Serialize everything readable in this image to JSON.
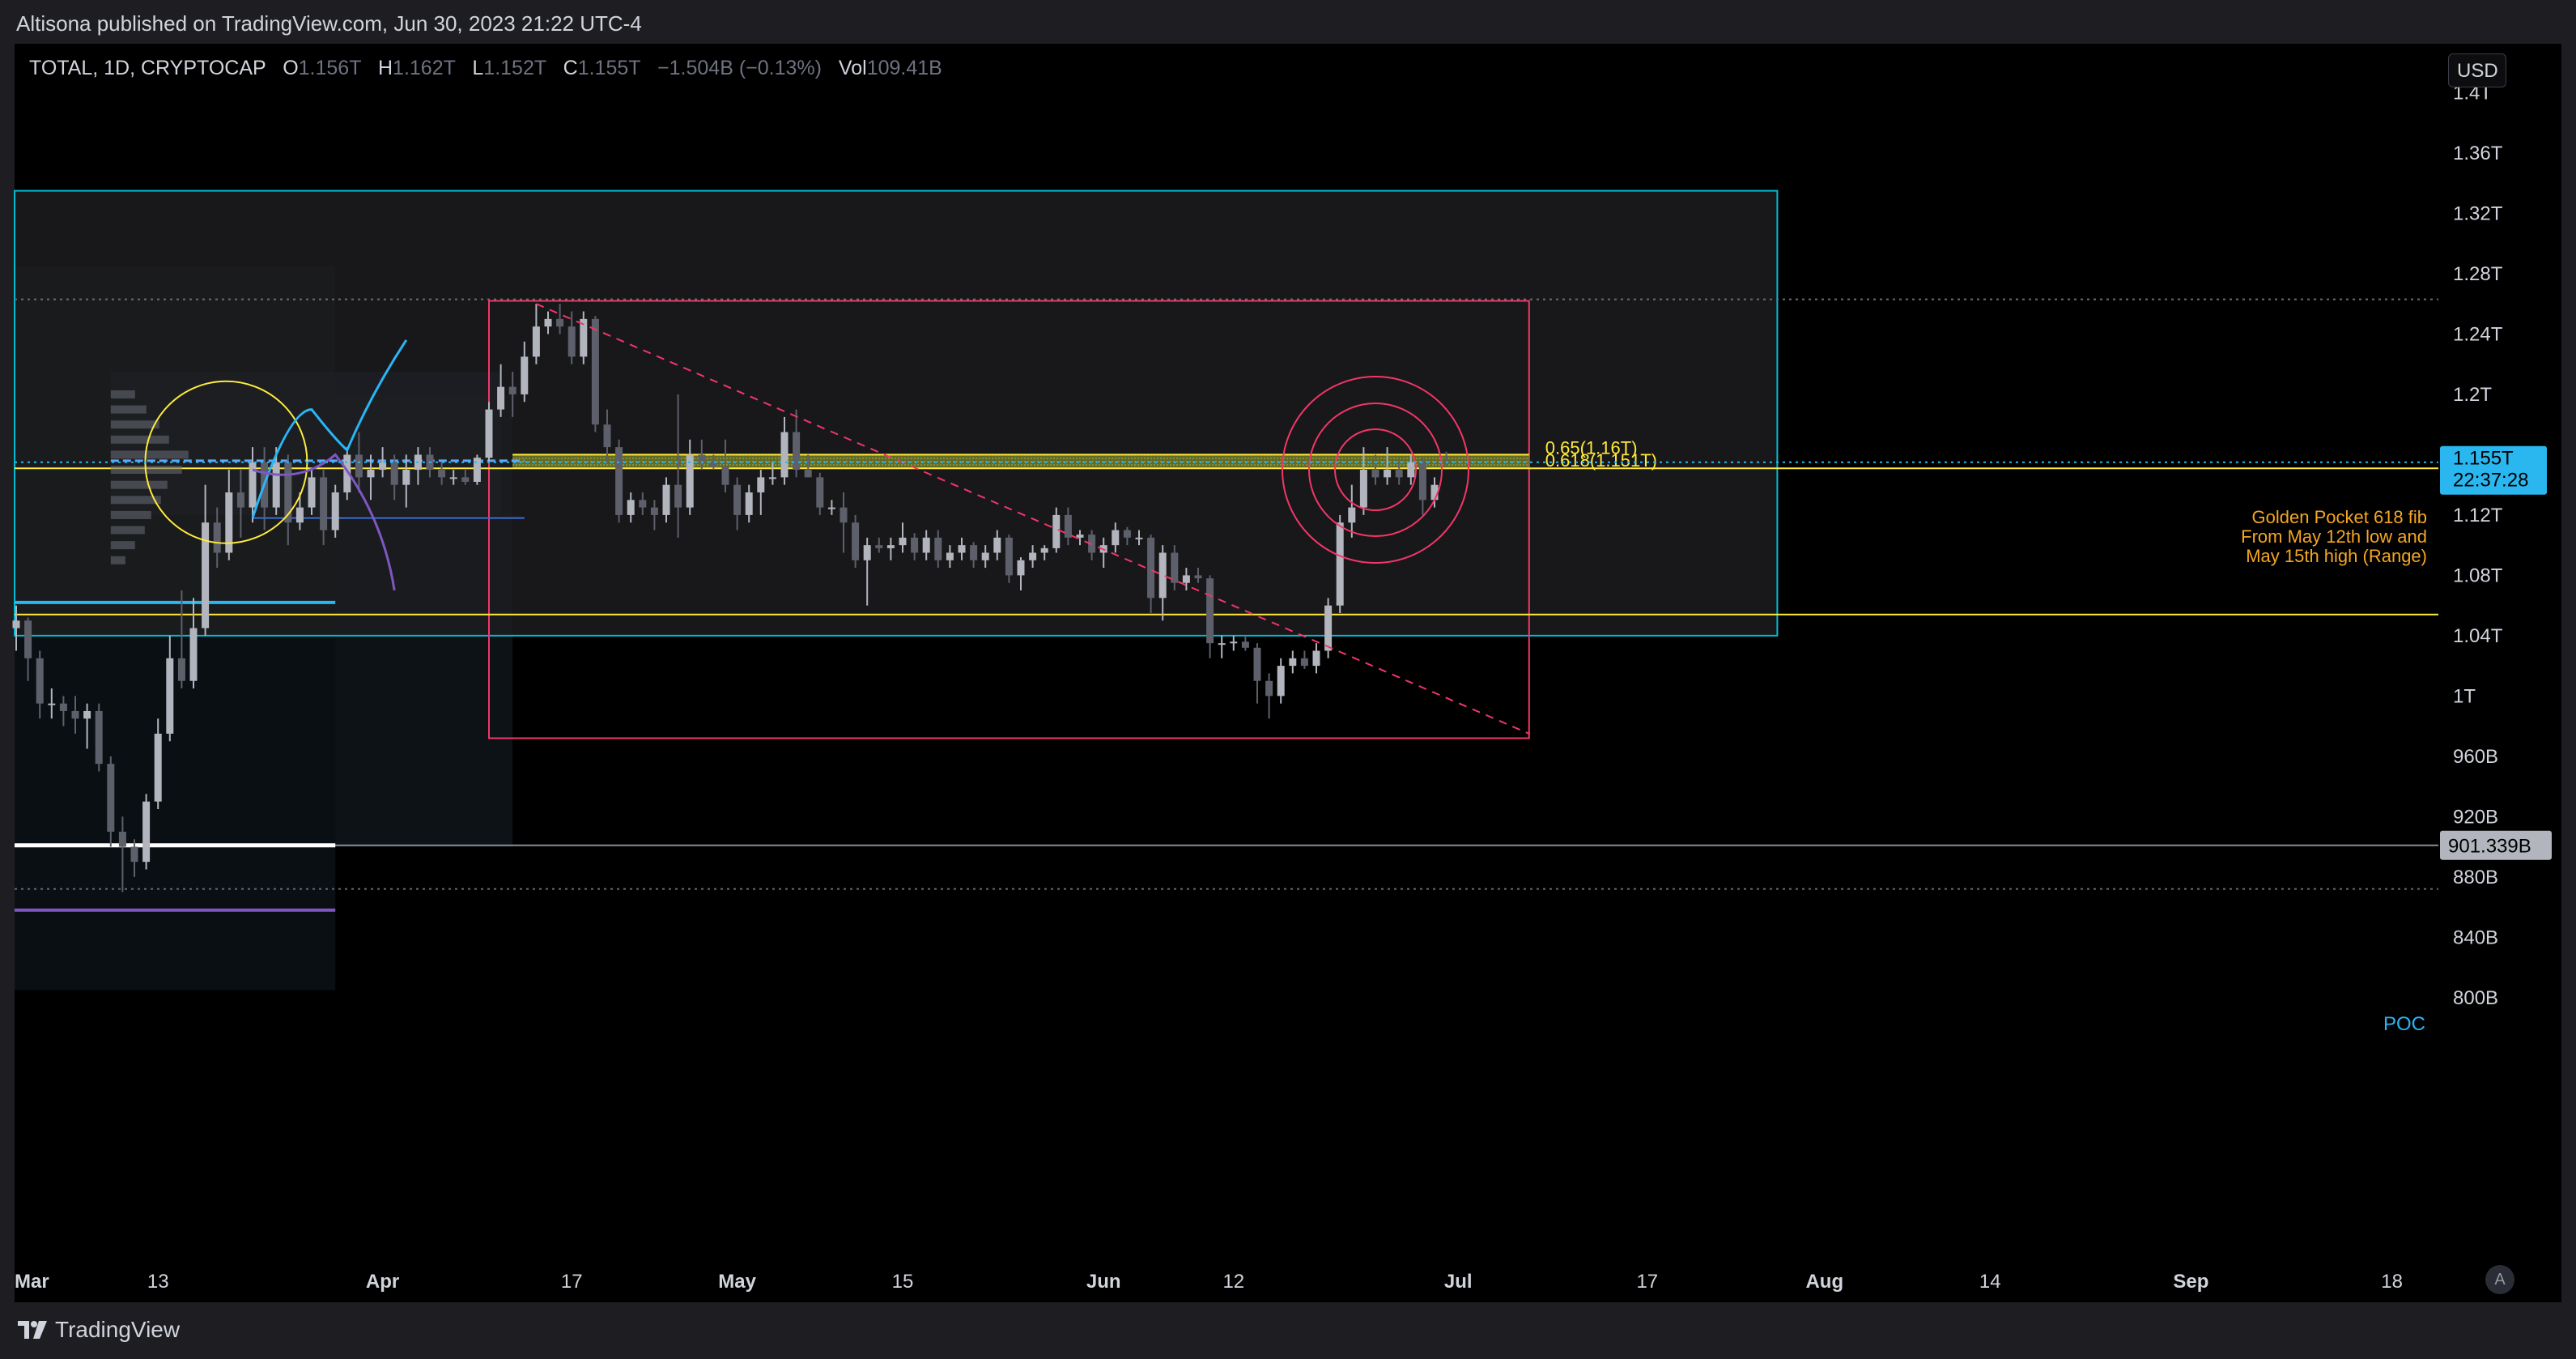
{
  "publisher": "Altisona published on TradingView.com, Jun 30, 2023 21:22 UTC-4",
  "legend": {
    "symbol": "TOTAL, 1D, CRYPTOCAP",
    "o_label": "O",
    "o": "1.156T",
    "h_label": "H",
    "h": "1.162T",
    "l_label": "L",
    "l": "1.152T",
    "c_label": "C",
    "c": "1.155T",
    "change": "−1.504B (−0.13%)",
    "vol_label": "Vol",
    "vol": "109.41B"
  },
  "currency": "USD",
  "brand": "TradingView",
  "auto_label": "A",
  "colors": {
    "bull": "#b2b5be",
    "bear": "#5d606b",
    "blue_box": "#00bcd4",
    "red_box": "#f23669",
    "fib": "#ffeb3b",
    "poc": "#ffffff",
    "price_tag": "#2ab7f0",
    "annotation": "#f5a623",
    "cyan_line": "#29b6f6",
    "purple": "#7e57c2"
  },
  "chart_data": {
    "type": "candlestick",
    "title": "TOTAL, 1D, CRYPTOCAP",
    "y_unit": "USD (T)",
    "ylim": [
      0.775,
      1.425
    ],
    "y_ticks": [
      "1.4T",
      "1.36T",
      "1.32T",
      "1.28T",
      "1.24T",
      "1.2T",
      "1.16T",
      "1.12T",
      "1.08T",
      "1.04T",
      "1T",
      "960B",
      "920B",
      "880B",
      "840B",
      "800B"
    ],
    "y_tick_values": [
      1.4,
      1.36,
      1.32,
      1.28,
      1.24,
      1.2,
      1.16,
      1.12,
      1.08,
      1.04,
      1.0,
      0.96,
      0.92,
      0.88,
      0.84,
      0.8
    ],
    "x_ticks": [
      "Mar",
      "13",
      "Apr",
      "17",
      "May",
      "15",
      "Jun",
      "12",
      "Jul",
      "17",
      "Aug",
      "14",
      "Sep",
      "18"
    ],
    "x_tick_days": [
      0,
      12,
      31,
      47,
      61,
      75,
      92,
      103,
      122,
      138,
      153,
      167,
      184,
      201
    ],
    "x_origin": "2023-03-01",
    "xlim_days": [
      0,
      202
    ],
    "candles": [
      [
        "2023-03-01",
        1.045,
        1.06,
        1.03,
        1.05
      ],
      [
        "2023-03-02",
        1.05,
        1.052,
        1.01,
        1.025
      ],
      [
        "2023-03-03",
        1.025,
        1.03,
        0.985,
        0.995
      ],
      [
        "2023-03-04",
        0.995,
        1.005,
        0.985,
        0.995
      ],
      [
        "2023-03-05",
        0.995,
        1.0,
        0.98,
        0.99
      ],
      [
        "2023-03-06",
        0.99,
        1.0,
        0.975,
        0.985
      ],
      [
        "2023-03-07",
        0.985,
        0.995,
        0.965,
        0.99
      ],
      [
        "2023-03-08",
        0.99,
        0.995,
        0.95,
        0.955
      ],
      [
        "2023-03-09",
        0.955,
        0.96,
        0.9,
        0.91
      ],
      [
        "2023-03-10",
        0.91,
        0.92,
        0.87,
        0.9
      ],
      [
        "2023-03-11",
        0.9,
        0.905,
        0.88,
        0.89
      ],
      [
        "2023-03-12",
        0.89,
        0.935,
        0.885,
        0.93
      ],
      [
        "2023-03-13",
        0.93,
        0.985,
        0.925,
        0.975
      ],
      [
        "2023-03-14",
        0.975,
        1.04,
        0.97,
        1.025
      ],
      [
        "2023-03-15",
        1.025,
        1.07,
        1.005,
        1.01
      ],
      [
        "2023-03-16",
        1.01,
        1.065,
        1.005,
        1.045
      ],
      [
        "2023-03-17",
        1.045,
        1.14,
        1.04,
        1.115
      ],
      [
        "2023-03-18",
        1.115,
        1.125,
        1.085,
        1.095
      ],
      [
        "2023-03-19",
        1.095,
        1.15,
        1.09,
        1.135
      ],
      [
        "2023-03-20",
        1.135,
        1.15,
        1.105,
        1.125
      ],
      [
        "2023-03-21",
        1.125,
        1.165,
        1.115,
        1.155
      ],
      [
        "2023-03-22",
        1.155,
        1.165,
        1.11,
        1.125
      ],
      [
        "2023-03-23",
        1.125,
        1.165,
        1.12,
        1.155
      ],
      [
        "2023-03-24",
        1.155,
        1.16,
        1.1,
        1.115
      ],
      [
        "2023-03-25",
        1.115,
        1.135,
        1.11,
        1.125
      ],
      [
        "2023-03-26",
        1.125,
        1.15,
        1.12,
        1.145
      ],
      [
        "2023-03-27",
        1.145,
        1.15,
        1.1,
        1.11
      ],
      [
        "2023-03-28",
        1.11,
        1.14,
        1.105,
        1.135
      ],
      [
        "2023-03-29",
        1.135,
        1.165,
        1.13,
        1.16
      ],
      [
        "2023-03-30",
        1.16,
        1.175,
        1.135,
        1.145
      ],
      [
        "2023-03-31",
        1.145,
        1.16,
        1.13,
        1.15
      ],
      [
        "2023-04-01",
        1.15,
        1.165,
        1.145,
        1.155
      ],
      [
        "2023-04-02",
        1.155,
        1.16,
        1.13,
        1.14
      ],
      [
        "2023-04-03",
        1.14,
        1.16,
        1.125,
        1.15
      ],
      [
        "2023-04-04",
        1.15,
        1.165,
        1.14,
        1.16
      ],
      [
        "2023-04-05",
        1.16,
        1.165,
        1.145,
        1.15
      ],
      [
        "2023-04-06",
        1.15,
        1.155,
        1.14,
        1.145
      ],
      [
        "2023-04-07",
        1.145,
        1.15,
        1.14,
        1.145
      ],
      [
        "2023-04-08",
        1.145,
        1.15,
        1.14,
        1.142
      ],
      [
        "2023-04-09",
        1.142,
        1.16,
        1.14,
        1.158
      ],
      [
        "2023-04-10",
        1.158,
        1.195,
        1.155,
        1.19
      ],
      [
        "2023-04-11",
        1.19,
        1.22,
        1.185,
        1.205
      ],
      [
        "2023-04-12",
        1.205,
        1.215,
        1.185,
        1.2
      ],
      [
        "2023-04-13",
        1.2,
        1.235,
        1.195,
        1.225
      ],
      [
        "2023-04-14",
        1.225,
        1.26,
        1.22,
        1.245
      ],
      [
        "2023-04-15",
        1.245,
        1.255,
        1.24,
        1.25
      ],
      [
        "2023-04-16",
        1.25,
        1.26,
        1.24,
        1.245
      ],
      [
        "2023-04-17",
        1.245,
        1.255,
        1.22,
        1.225
      ],
      [
        "2023-04-18",
        1.225,
        1.255,
        1.22,
        1.25
      ],
      [
        "2023-04-19",
        1.25,
        1.252,
        1.175,
        1.18
      ],
      [
        "2023-04-20",
        1.18,
        1.19,
        1.155,
        1.165
      ],
      [
        "2023-04-21",
        1.165,
        1.17,
        1.115,
        1.12
      ],
      [
        "2023-04-22",
        1.12,
        1.135,
        1.115,
        1.13
      ],
      [
        "2023-04-23",
        1.13,
        1.135,
        1.12,
        1.125
      ],
      [
        "2023-04-24",
        1.125,
        1.13,
        1.11,
        1.12
      ],
      [
        "2023-04-25",
        1.12,
        1.145,
        1.115,
        1.14
      ],
      [
        "2023-04-26",
        1.14,
        1.2,
        1.105,
        1.125
      ],
      [
        "2023-04-27",
        1.125,
        1.17,
        1.12,
        1.16
      ],
      [
        "2023-04-28",
        1.16,
        1.17,
        1.15,
        1.155
      ],
      [
        "2023-04-29",
        1.155,
        1.16,
        1.15,
        1.152
      ],
      [
        "2023-04-30",
        1.152,
        1.17,
        1.135,
        1.14
      ],
      [
        "2023-05-01",
        1.14,
        1.145,
        1.11,
        1.12
      ],
      [
        "2023-05-02",
        1.12,
        1.14,
        1.115,
        1.135
      ],
      [
        "2023-05-03",
        1.135,
        1.15,
        1.12,
        1.145
      ],
      [
        "2023-05-04",
        1.145,
        1.155,
        1.14,
        1.145
      ],
      [
        "2023-05-05",
        1.145,
        1.185,
        1.14,
        1.175
      ],
      [
        "2023-05-06",
        1.175,
        1.19,
        1.145,
        1.15
      ],
      [
        "2023-05-07",
        1.15,
        1.16,
        1.145,
        1.145
      ],
      [
        "2023-05-08",
        1.145,
        1.148,
        1.12,
        1.125
      ],
      [
        "2023-05-09",
        1.125,
        1.13,
        1.12,
        1.125
      ],
      [
        "2023-05-10",
        1.125,
        1.135,
        1.095,
        1.115
      ],
      [
        "2023-05-11",
        1.115,
        1.12,
        1.085,
        1.09
      ],
      [
        "2023-05-12",
        1.09,
        1.105,
        1.06,
        1.1
      ],
      [
        "2023-05-13",
        1.1,
        1.105,
        1.095,
        1.098
      ],
      [
        "2023-05-14",
        1.098,
        1.105,
        1.09,
        1.1
      ],
      [
        "2023-05-15",
        1.1,
        1.115,
        1.095,
        1.105
      ],
      [
        "2023-05-16",
        1.105,
        1.108,
        1.09,
        1.095
      ],
      [
        "2023-05-17",
        1.095,
        1.11,
        1.09,
        1.105
      ],
      [
        "2023-05-18",
        1.105,
        1.11,
        1.085,
        1.09
      ],
      [
        "2023-05-19",
        1.09,
        1.1,
        1.085,
        1.095
      ],
      [
        "2023-05-20",
        1.095,
        1.105,
        1.09,
        1.1
      ],
      [
        "2023-05-21",
        1.1,
        1.102,
        1.085,
        1.09
      ],
      [
        "2023-05-22",
        1.09,
        1.1,
        1.085,
        1.095
      ],
      [
        "2023-05-23",
        1.095,
        1.11,
        1.09,
        1.105
      ],
      [
        "2023-05-24",
        1.105,
        1.107,
        1.075,
        1.08
      ],
      [
        "2023-05-25",
        1.08,
        1.092,
        1.07,
        1.09
      ],
      [
        "2023-05-26",
        1.09,
        1.1,
        1.085,
        1.095
      ],
      [
        "2023-05-27",
        1.095,
        1.1,
        1.09,
        1.098
      ],
      [
        "2023-05-28",
        1.098,
        1.125,
        1.095,
        1.12
      ],
      [
        "2023-05-29",
        1.12,
        1.125,
        1.1,
        1.105
      ],
      [
        "2023-05-30",
        1.105,
        1.11,
        1.1,
        1.107
      ],
      [
        "2023-05-31",
        1.107,
        1.11,
        1.09,
        1.095
      ],
      [
        "2023-06-01",
        1.095,
        1.105,
        1.085,
        1.1
      ],
      [
        "2023-06-02",
        1.1,
        1.115,
        1.095,
        1.11
      ],
      [
        "2023-06-03",
        1.11,
        1.112,
        1.1,
        1.105
      ],
      [
        "2023-06-04",
        1.105,
        1.11,
        1.1,
        1.105
      ],
      [
        "2023-06-05",
        1.105,
        1.107,
        1.055,
        1.065
      ],
      [
        "2023-06-06",
        1.065,
        1.1,
        1.05,
        1.095
      ],
      [
        "2023-06-07",
        1.095,
        1.1,
        1.07,
        1.075
      ],
      [
        "2023-06-08",
        1.075,
        1.085,
        1.07,
        1.08
      ],
      [
        "2023-06-09",
        1.08,
        1.085,
        1.075,
        1.078
      ],
      [
        "2023-06-10",
        1.078,
        1.08,
        1.025,
        1.035
      ],
      [
        "2023-06-11",
        1.035,
        1.04,
        1.025,
        1.035
      ],
      [
        "2023-06-12",
        1.035,
        1.04,
        1.03,
        1.036
      ],
      [
        "2023-06-13",
        1.036,
        1.04,
        1.03,
        1.032
      ],
      [
        "2023-06-14",
        1.032,
        1.035,
        0.995,
        1.01
      ],
      [
        "2023-06-15",
        1.01,
        1.015,
        0.985,
        1.0
      ],
      [
        "2023-06-16",
        1.0,
        1.025,
        0.995,
        1.02
      ],
      [
        "2023-06-17",
        1.02,
        1.03,
        1.015,
        1.025
      ],
      [
        "2023-06-18",
        1.025,
        1.03,
        1.018,
        1.02
      ],
      [
        "2023-06-19",
        1.02,
        1.035,
        1.015,
        1.03
      ],
      [
        "2023-06-20",
        1.03,
        1.065,
        1.025,
        1.06
      ],
      [
        "2023-06-21",
        1.06,
        1.12,
        1.055,
        1.115
      ],
      [
        "2023-06-22",
        1.115,
        1.14,
        1.105,
        1.125
      ],
      [
        "2023-06-23",
        1.125,
        1.165,
        1.12,
        1.15
      ],
      [
        "2023-06-24",
        1.15,
        1.16,
        1.14,
        1.145
      ],
      [
        "2023-06-25",
        1.145,
        1.165,
        1.14,
        1.15
      ],
      [
        "2023-06-26",
        1.15,
        1.155,
        1.14,
        1.145
      ],
      [
        "2023-06-27",
        1.145,
        1.16,
        1.14,
        1.155
      ],
      [
        "2023-06-28",
        1.155,
        1.158,
        1.12,
        1.13
      ],
      [
        "2023-06-29",
        1.13,
        1.145,
        1.125,
        1.14
      ],
      [
        "2023-06-30",
        1.156,
        1.162,
        1.152,
        1.155
      ]
    ],
    "annotations": {
      "fib_label_1": "0.65(1.16T)",
      "fib_label_2": "0.618(1.151T)",
      "golden_pocket": [
        "Golden Pocket 618 fib",
        "From May 12th low and",
        "May 15th high (Range)"
      ],
      "fib_0650": 1.16,
      "fib_0618": 1.151,
      "range_low_line": 1.054,
      "poc_label": "POC",
      "poc_value": "901.339B",
      "poc_level": 0.901,
      "last_price": "1.155T",
      "countdown": "22:37:28",
      "last_price_level": 1.155,
      "dotted_lines": [
        1.263,
        0.872
      ],
      "blue_box": {
        "from": "2023-03-01",
        "to": "2023-07-28",
        "top": 1.335,
        "bottom": 1.04
      },
      "red_box": {
        "from": "2023-04-10",
        "to": "2023-07-07",
        "top": 1.262,
        "bottom": 0.972
      },
      "downtrend_line": {
        "from": [
          "2023-04-14",
          1.26
        ],
        "to": [
          "2023-07-07",
          0.975
        ]
      },
      "target_circles": {
        "at": [
          "2023-06-24",
          1.15
        ]
      },
      "yellow_circle": {
        "at": [
          "2023-03-20",
          1.155
        ]
      }
    }
  }
}
